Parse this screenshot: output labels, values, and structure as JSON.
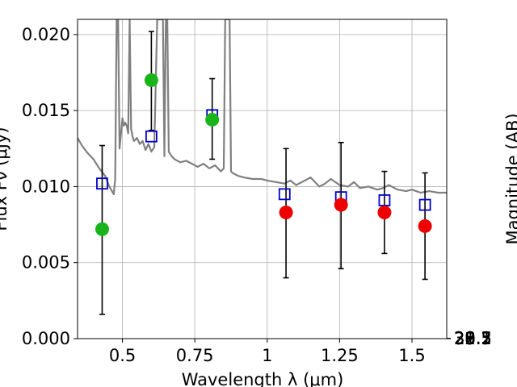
{
  "chart_data": {
    "type": "scatter",
    "title": "",
    "xlabel": "Wavelength  λ (μm)",
    "ylabel_left": "Flux Fν (μJy)",
    "ylabel_right": "Magnitude (AB)",
    "xlim": [
      0.345,
      1.62
    ],
    "ylim": [
      0.0,
      0.021
    ],
    "grid": true,
    "x_ticks": [
      {
        "value": 0.5,
        "label": "0.5"
      },
      {
        "value": 0.75,
        "label": "0.75"
      },
      {
        "value": 1.0,
        "label": "1"
      },
      {
        "value": 1.25,
        "label": "1.25"
      },
      {
        "value": 1.5,
        "label": "1.5"
      }
    ],
    "y_ticks_left": [
      {
        "value": 0.0,
        "label": "0.000"
      },
      {
        "value": 0.005,
        "label": "0.005"
      },
      {
        "value": 0.01,
        "label": "0.010"
      },
      {
        "value": 0.015,
        "label": "0.015"
      },
      {
        "value": 0.02,
        "label": "0.020"
      }
    ],
    "y_ticks_right": [
      {
        "mag": 28.1,
        "label": "28.1"
      },
      {
        "mag": 28.3,
        "label": "28.3"
      },
      {
        "mag": 28.5,
        "label": "28.5"
      },
      {
        "mag": 28.7,
        "label": "28.7"
      },
      {
        "mag": 29.0,
        "label": "29"
      },
      {
        "mag": 29.2,
        "label": "29.2"
      },
      {
        "mag": 29.5,
        "label": "29.5"
      },
      {
        "mag": 30.0,
        "label": "30"
      },
      {
        "mag": 30.5,
        "label": "30.5"
      },
      {
        "mag": 31.0,
        "label": "31"
      },
      {
        "mag": 32.0,
        "label": "32"
      }
    ],
    "series": [
      {
        "kind": "line",
        "color": "#808080",
        "x": [
          0.345,
          0.36,
          0.38,
          0.4,
          0.42,
          0.44,
          0.455,
          0.47,
          0.475,
          0.48,
          0.485,
          0.49,
          0.495,
          0.5,
          0.505,
          0.51,
          0.515,
          0.52,
          0.525,
          0.53,
          0.535,
          0.54,
          0.55,
          0.56,
          0.57,
          0.58,
          0.59,
          0.6,
          0.61,
          0.62,
          0.63,
          0.64,
          0.645,
          0.65,
          0.655,
          0.66,
          0.67,
          0.68,
          0.7,
          0.72,
          0.74,
          0.76,
          0.78,
          0.8,
          0.82,
          0.84,
          0.85,
          0.855,
          0.86,
          0.865,
          0.87,
          0.875,
          0.88,
          0.9,
          0.92,
          0.95,
          0.98,
          1.0,
          1.03,
          1.06,
          1.08,
          1.1,
          1.12,
          1.15,
          1.18,
          1.2,
          1.22,
          1.25,
          1.28,
          1.3,
          1.32,
          1.35,
          1.38,
          1.4,
          1.42,
          1.45,
          1.48,
          1.5,
          1.53,
          1.56,
          1.59,
          1.62
        ],
        "y": [
          0.0132,
          0.0127,
          0.0122,
          0.0118,
          0.0112,
          0.0107,
          0.01,
          0.0095,
          0.0105,
          0.021,
          0.021,
          0.0125,
          0.0135,
          0.0145,
          0.014,
          0.0142,
          0.014,
          0.0135,
          0.021,
          0.0138,
          0.0133,
          0.013,
          0.0132,
          0.0128,
          0.013,
          0.0124,
          0.0128,
          0.0123,
          0.0126,
          0.021,
          0.021,
          0.021,
          0.012,
          0.021,
          0.021,
          0.0123,
          0.012,
          0.0118,
          0.0116,
          0.0117,
          0.0115,
          0.0113,
          0.0115,
          0.0112,
          0.0114,
          0.011,
          0.0112,
          0.021,
          0.021,
          0.021,
          0.021,
          0.011,
          0.0109,
          0.0107,
          0.0106,
          0.0105,
          0.0105,
          0.0104,
          0.0103,
          0.0102,
          0.0104,
          0.0101,
          0.0103,
          0.0106,
          0.01,
          0.0102,
          0.0105,
          0.0101,
          0.01,
          0.0103,
          0.0099,
          0.01,
          0.0098,
          0.0099,
          0.0101,
          0.0098,
          0.0097,
          0.0098,
          0.0096,
          0.0097,
          0.0096,
          0.0096
        ]
      },
      {
        "kind": "squares",
        "color": "#0000cc",
        "x": [
          0.43,
          0.6,
          0.81,
          1.06,
          1.255,
          1.405,
          1.545
        ],
        "y": [
          0.0102,
          0.0133,
          0.0147,
          0.0095,
          0.0093,
          0.0091,
          0.0088
        ]
      },
      {
        "kind": "circles",
        "color": "#19b419",
        "x": [
          0.43,
          0.6,
          0.81
        ],
        "y": [
          0.0072,
          0.017,
          0.0144
        ],
        "err_low": [
          0.0056,
          0.0033,
          0.0026
        ],
        "err_high": [
          0.0055,
          0.0032,
          0.0027
        ]
      },
      {
        "kind": "circles",
        "color": "#ee0000",
        "x": [
          1.065,
          1.255,
          1.405,
          1.545
        ],
        "y": [
          0.0083,
          0.0088,
          0.0083,
          0.0074
        ],
        "err_low": [
          0.0043,
          0.0042,
          0.0027,
          0.0035
        ],
        "err_high": [
          0.0042,
          0.0041,
          0.0027,
          0.0035
        ]
      }
    ]
  }
}
